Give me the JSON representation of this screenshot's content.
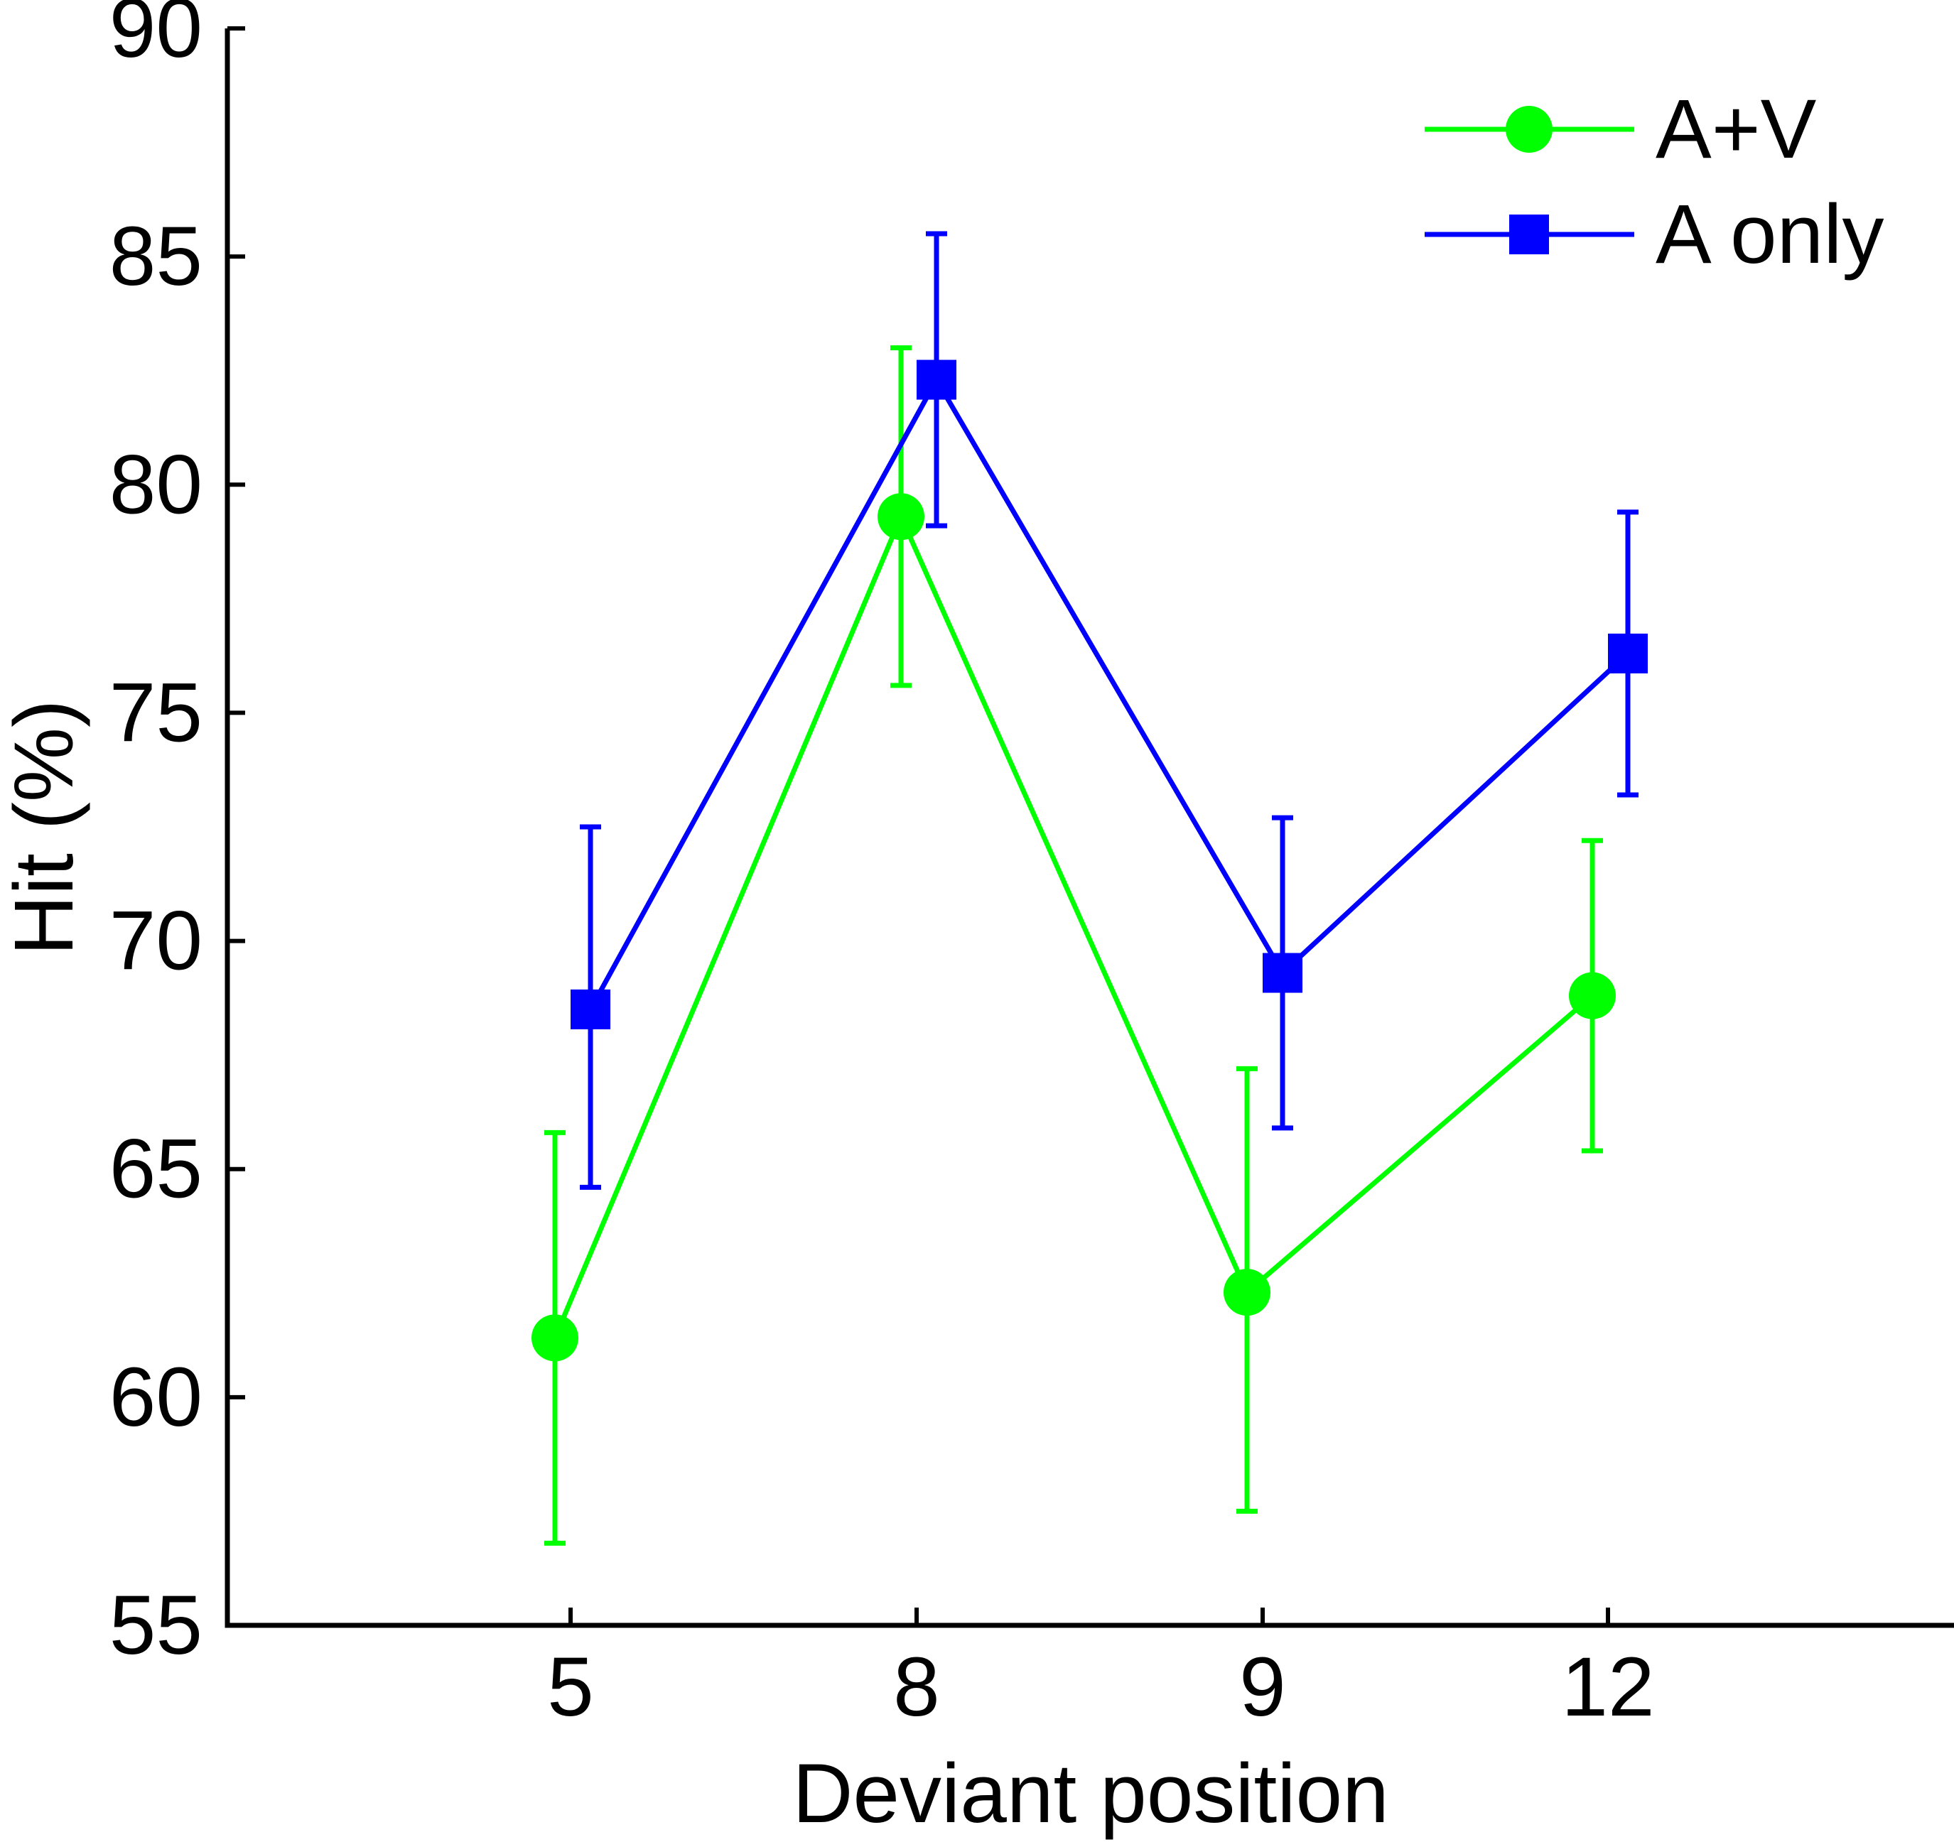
{
  "chart_data": {
    "type": "line",
    "title": "",
    "xlabel": "Deviant position",
    "ylabel": "Hit (%)",
    "categories": [
      "5",
      "8",
      "9",
      "12"
    ],
    "ylim": [
      55,
      90
    ],
    "yticks": [
      "55",
      "60",
      "65",
      "70",
      "75",
      "80",
      "85",
      "90"
    ],
    "grid": false,
    "legend_position": "top-right",
    "error_bars": true,
    "series": [
      {
        "name": "A+V",
        "color": "#00ff00",
        "marker": "circle",
        "values": [
          61.3,
          79.3,
          62.3,
          68.8
        ],
        "err_low": [
          56.8,
          75.6,
          57.5,
          65.4
        ],
        "err_high": [
          65.8,
          83.0,
          67.2,
          72.2
        ]
      },
      {
        "name": "A only",
        "color": "#0000ff",
        "marker": "square",
        "values": [
          68.5,
          82.3,
          69.3,
          76.3
        ],
        "err_low": [
          64.6,
          79.1,
          65.9,
          73.2
        ],
        "err_high": [
          72.5,
          85.5,
          72.7,
          79.4
        ]
      }
    ]
  }
}
